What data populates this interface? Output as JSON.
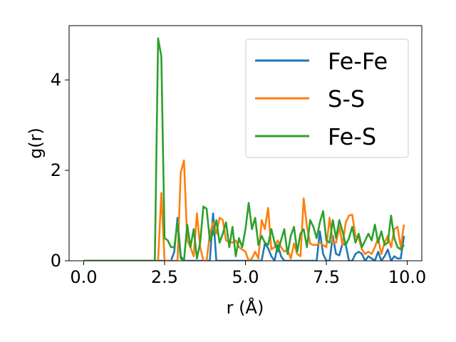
{
  "chart_data": {
    "type": "line",
    "xlabel": "r (Å)",
    "ylabel": "g(r)",
    "xlim": [
      -0.45,
      10.45
    ],
    "ylim": [
      0,
      5.2
    ],
    "xticks": [
      0.0,
      2.5,
      5.0,
      7.5,
      10.0
    ],
    "xtick_labels": [
      "0.0",
      "2.5",
      "5.0",
      "7.5",
      "10.0"
    ],
    "yticks": [
      0,
      2,
      4
    ],
    "ytick_labels": [
      "0",
      "2",
      "4"
    ],
    "grid": false,
    "legend_position": "top-right",
    "x": [
      0.0,
      0.1,
      0.2,
      0.3,
      0.4,
      0.5,
      0.6,
      0.7,
      0.8,
      0.9,
      1.0,
      1.1,
      1.2,
      1.3,
      1.4,
      1.5,
      1.6,
      1.7,
      1.8,
      1.9,
      2.0,
      2.1,
      2.2,
      2.3,
      2.4,
      2.5,
      2.6,
      2.7,
      2.8,
      2.9,
      3.0,
      3.1,
      3.2,
      3.3,
      3.4,
      3.5,
      3.6,
      3.7,
      3.8,
      3.9,
      4.0,
      4.1,
      4.2,
      4.3,
      4.4,
      4.5,
      4.6,
      4.7,
      4.8,
      4.9,
      5.0,
      5.1,
      5.2,
      5.3,
      5.4,
      5.5,
      5.6,
      5.7,
      5.8,
      5.9,
      6.0,
      6.1,
      6.2,
      6.3,
      6.4,
      6.5,
      6.6,
      6.7,
      6.8,
      6.9,
      7.0,
      7.1,
      7.2,
      7.3,
      7.4,
      7.5,
      7.6,
      7.7,
      7.8,
      7.9,
      8.0,
      8.1,
      8.2,
      8.3,
      8.4,
      8.5,
      8.6,
      8.7,
      8.8,
      8.9,
      9.0,
      9.1,
      9.2,
      9.3,
      9.4,
      9.5,
      9.6,
      9.7,
      9.8,
      9.9
    ],
    "series": [
      {
        "name": "Fe-Fe",
        "color": "#1f77b4",
        "values": [
          0,
          0,
          0,
          0,
          0,
          0,
          0,
          0,
          0,
          0,
          0,
          0,
          0,
          0,
          0,
          0,
          0,
          0,
          0,
          0,
          0,
          0,
          0,
          0,
          0,
          0,
          0,
          0,
          0.2,
          0.95,
          0.1,
          0,
          0,
          0,
          0,
          0,
          0,
          0,
          0,
          0,
          1.05,
          0,
          0,
          0,
          0,
          0,
          0,
          0,
          0,
          0,
          0,
          0,
          0,
          0,
          0,
          0,
          0.38,
          0.28,
          0.1,
          0,
          0.35,
          0.1,
          0,
          0,
          0,
          0,
          0,
          0,
          0,
          0,
          0,
          0,
          0,
          0.65,
          0.15,
          0,
          0,
          0.55,
          0.15,
          0.12,
          0.38,
          0.35,
          0,
          0,
          0.15,
          0.2,
          0.15,
          0,
          0.1,
          0.05,
          0,
          0.2,
          0,
          0.1,
          0.25,
          0,
          0.1,
          0.05,
          0.05,
          0.55
        ]
      },
      {
        "name": "S-S",
        "color": "#ff7f0e",
        "values": [
          0,
          0,
          0,
          0,
          0,
          0,
          0,
          0,
          0,
          0,
          0,
          0,
          0,
          0,
          0,
          0,
          0,
          0,
          0,
          0,
          0,
          0,
          0,
          0,
          1.5,
          0,
          0,
          0,
          0,
          0,
          1.95,
          2.22,
          0.45,
          0.3,
          0.1,
          1.05,
          0.3,
          0,
          0,
          0.6,
          0.85,
          0.6,
          0.95,
          0.9,
          0.45,
          0.42,
          0.4,
          0.45,
          0.3,
          0.25,
          0.2,
          0,
          0.05,
          0.2,
          0.05,
          0.9,
          0.7,
          1.17,
          0.25,
          0.3,
          0.45,
          0.3,
          0.2,
          0.25,
          0.05,
          0.38,
          0.15,
          0.1,
          1.38,
          0.75,
          0.38,
          0.35,
          0.35,
          0.4,
          0.35,
          0.3,
          0.95,
          0.4,
          0.4,
          0.75,
          0.35,
          0.85,
          1.0,
          1.02,
          0.55,
          0.5,
          0.25,
          0.15,
          0.2,
          0.15,
          0.3,
          0.5,
          0.15,
          0.4,
          0.55,
          0.3,
          0.7,
          0.75,
          0.3,
          0.8
        ]
      },
      {
        "name": "Fe-S",
        "color": "#2ca02c",
        "values": [
          0,
          0,
          0,
          0,
          0,
          0,
          0,
          0,
          0,
          0,
          0,
          0,
          0,
          0,
          0,
          0,
          0,
          0,
          0,
          0,
          0,
          0,
          0,
          4.92,
          4.52,
          0.5,
          0.45,
          0.3,
          0.3,
          0.85,
          0.05,
          0,
          0.8,
          0.3,
          0.7,
          0.05,
          0.4,
          1.2,
          1.15,
          0.45,
          0.6,
          0.9,
          0.4,
          0.6,
          0.85,
          0.3,
          0.75,
          0.1,
          0.5,
          0.3,
          0.7,
          1.28,
          0.7,
          0.95,
          0.35,
          0.55,
          0.4,
          0.35,
          0.7,
          0.4,
          0.2,
          0.45,
          0.7,
          0.15,
          0.55,
          0.75,
          0.2,
          0.6,
          0.7,
          0.3,
          0.9,
          0.75,
          0.5,
          0.85,
          1.1,
          0.45,
          0.4,
          0.9,
          0.5,
          0.9,
          0.65,
          0.35,
          0.5,
          0.75,
          0.4,
          0.6,
          0.3,
          0.45,
          0.6,
          0.45,
          0.8,
          0.4,
          0.65,
          0.35,
          0.4,
          1.0,
          0.5,
          0.3,
          0.25,
          0.35
        ]
      }
    ]
  }
}
